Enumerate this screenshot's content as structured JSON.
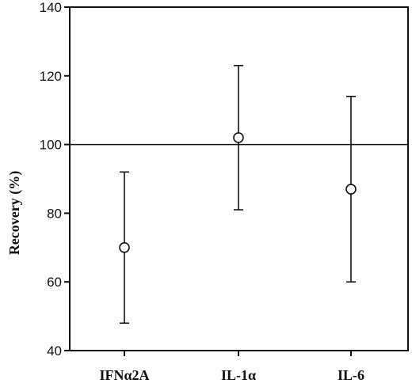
{
  "chart_data": {
    "type": "scatter",
    "title": "",
    "xlabel": "",
    "ylabel": "Recovery (%)",
    "ylim": [
      40,
      140
    ],
    "yticks": [
      40,
      60,
      80,
      100,
      120,
      140
    ],
    "categories": [
      "IFNα2A",
      "IL-1α",
      "IL-6"
    ],
    "values": [
      70,
      102,
      87
    ],
    "error_low": [
      48,
      81,
      60
    ],
    "error_high": [
      92,
      123,
      114
    ],
    "reference_line": 100,
    "grid": false,
    "legend": "none",
    "marker": "open-circle"
  }
}
